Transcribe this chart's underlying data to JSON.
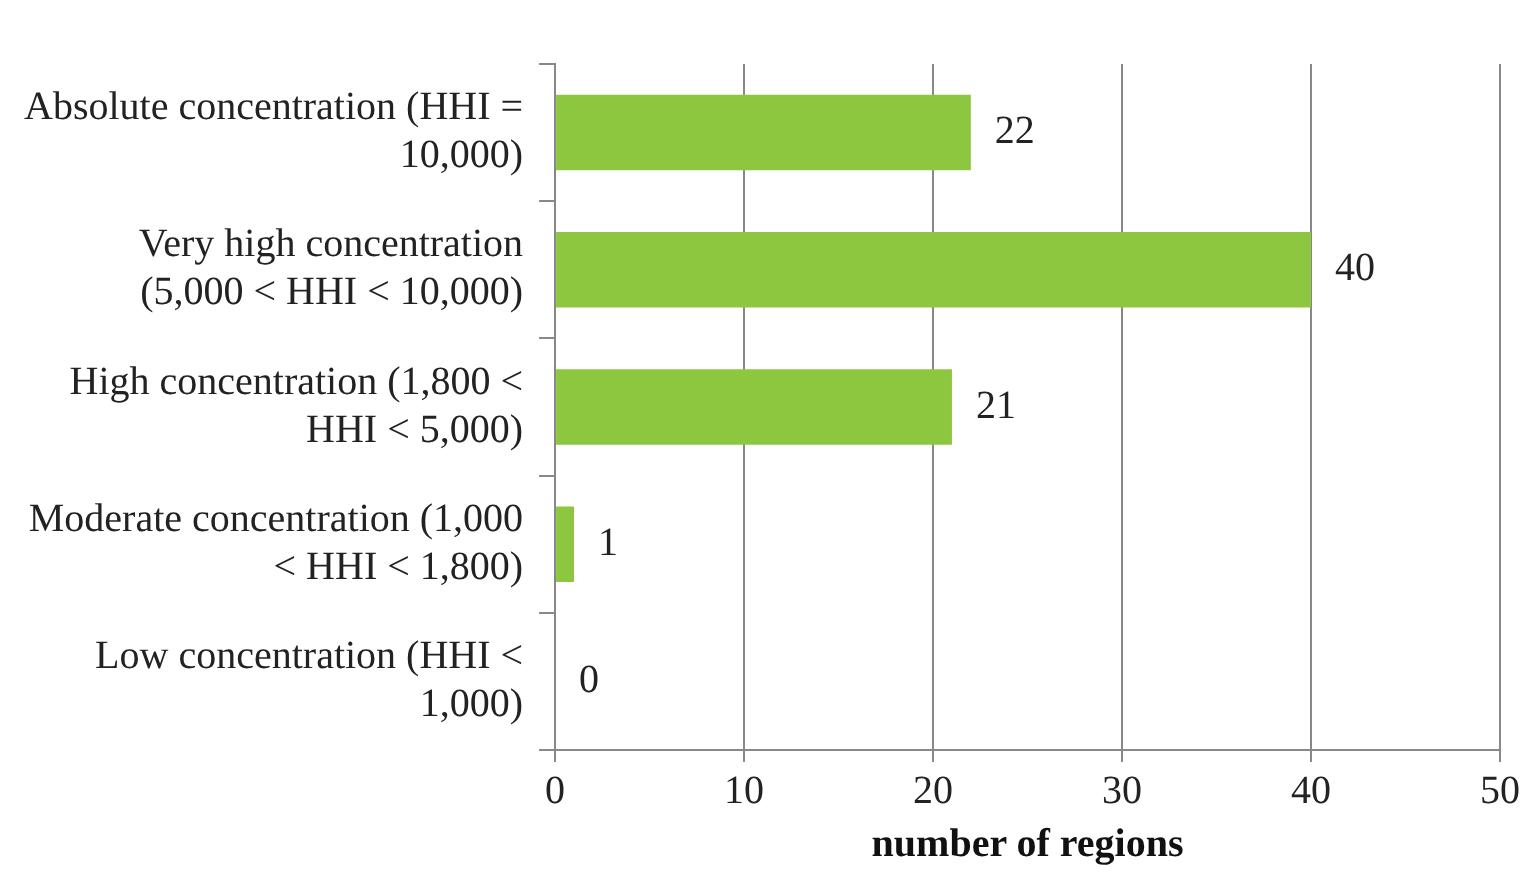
{
  "chart_data": {
    "type": "bar",
    "orientation": "horizontal",
    "xlabel": "number of regions",
    "categories": [
      "Absolute concentration (HHI = 10,000)",
      "Very high concentration (5,000 < HHI < 10,000)",
      "High concentration (1,800 < HHI < 5,000)",
      "Moderate concentration (1,000 < HHI < 1,800)",
      "Low concentration (HHI < 1,000)"
    ],
    "values": [
      22,
      40,
      21,
      1,
      0
    ],
    "color": "#8dc63f",
    "data_labels": true,
    "xlim": [
      0,
      50
    ],
    "xticks": [
      0,
      10,
      20,
      30,
      40,
      50
    ],
    "grid": "x",
    "legend": false
  }
}
